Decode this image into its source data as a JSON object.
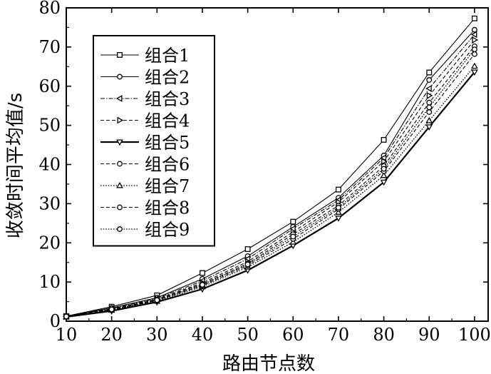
{
  "chart_data": {
    "type": "line",
    "xlabel": "路由节点数",
    "ylabel": "收敛时间平均值/s",
    "x": [
      10,
      20,
      30,
      40,
      50,
      60,
      70,
      80,
      90,
      100
    ],
    "xlim": [
      10,
      103
    ],
    "ylim": [
      0,
      80
    ],
    "xticks": [
      10,
      20,
      30,
      40,
      50,
      60,
      70,
      80,
      90,
      100
    ],
    "yticks": [
      0,
      10,
      20,
      30,
      40,
      50,
      60,
      70,
      80
    ],
    "grid": false,
    "legend_position": "top-left",
    "series": [
      {
        "name": "组合1",
        "marker": "square",
        "dash": "solid",
        "values": [
          1.3,
          3.7,
          6.6,
          12.3,
          18.4,
          25.4,
          33.6,
          46.3,
          63.5,
          77.3
        ]
      },
      {
        "name": "组合2",
        "marker": "circle",
        "dash": "solid",
        "values": [
          1.3,
          3.4,
          6.0,
          10.8,
          16.6,
          24.1,
          31.5,
          42.3,
          61.6,
          74.4
        ]
      },
      {
        "name": "组合3",
        "marker": "triangle-left",
        "dash": "dashdot",
        "values": [
          1.2,
          3.2,
          5.8,
          10.3,
          15.9,
          23.6,
          30.9,
          41.7,
          59.4,
          73.2
        ]
      },
      {
        "name": "组合4",
        "marker": "triangle-right",
        "dash": "dash",
        "values": [
          1.2,
          3.1,
          5.6,
          9.8,
          15.2,
          22.8,
          30.4,
          40.8,
          57.6,
          71.8
        ]
      },
      {
        "name": "组合5",
        "marker": "triangle-down",
        "dash": "solid-thick",
        "values": [
          1.1,
          2.6,
          4.9,
          8.2,
          13.0,
          19.3,
          26.3,
          35.5,
          49.6,
          63.6
        ]
      },
      {
        "name": "组合6",
        "marker": "circle",
        "dash": "dash",
        "values": [
          1.2,
          3.0,
          5.5,
          9.5,
          14.7,
          22.2,
          29.5,
          39.6,
          55.8,
          70.2
        ]
      },
      {
        "name": "组合7",
        "marker": "triangle-up",
        "dash": "dot",
        "values": [
          1.1,
          2.8,
          5.1,
          8.8,
          13.8,
          20.2,
          27.8,
          37.2,
          51.2,
          65.1
        ]
      },
      {
        "name": "组合8",
        "marker": "circle",
        "dash": "dash",
        "values": [
          1.1,
          2.9,
          5.3,
          9.1,
          14.2,
          21.0,
          28.6,
          38.3,
          53.4,
          68.2
        ]
      },
      {
        "name": "组合9",
        "marker": "circle",
        "dash": "dot",
        "values": [
          1.2,
          3.0,
          5.4,
          9.3,
          14.5,
          21.6,
          29.0,
          38.9,
          54.6,
          69.4
        ]
      }
    ]
  }
}
